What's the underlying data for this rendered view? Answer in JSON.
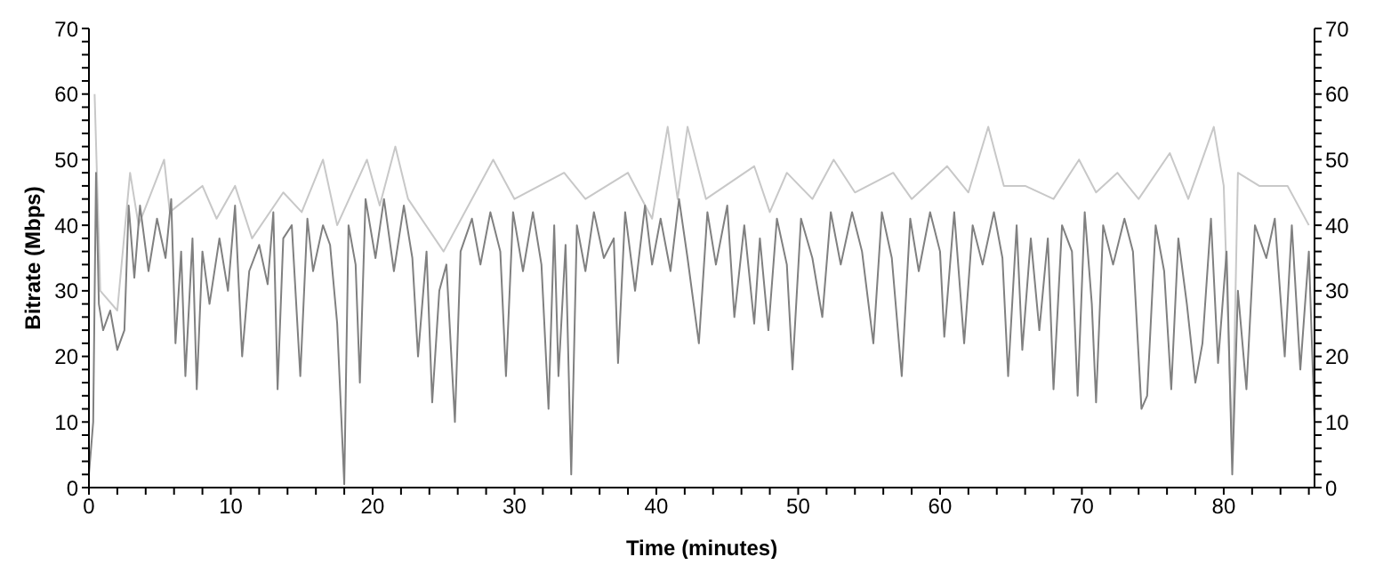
{
  "chart_data": {
    "type": "line",
    "xlabel": "Time (minutes)",
    "ylabel": "Bitrate (Mbps)",
    "xlim": [
      0,
      86.4
    ],
    "xticks": [
      0,
      {
        "value": 2,
        "label": null
      },
      {
        "value": 4,
        "label": null
      },
      {
        "value": 6,
        "label": null
      },
      {
        "value": 8,
        "label": null
      },
      10,
      {
        "value": 12,
        "label": null
      },
      {
        "value": 14,
        "label": null
      },
      {
        "value": 16,
        "label": null
      },
      {
        "value": 18,
        "label": null
      },
      20,
      {
        "value": 22,
        "label": null
      },
      {
        "value": 24,
        "label": null
      },
      {
        "value": 26,
        "label": null
      },
      {
        "value": 28,
        "label": null
      },
      30,
      {
        "value": 32,
        "label": null
      },
      {
        "value": 34,
        "label": null
      },
      {
        "value": 36,
        "label": null
      },
      {
        "value": 38,
        "label": null
      },
      40,
      {
        "value": 42,
        "label": null
      },
      {
        "value": 44,
        "label": null
      },
      {
        "value": 46,
        "label": null
      },
      {
        "value": 48,
        "label": null
      },
      50,
      {
        "value": 52,
        "label": null
      },
      {
        "value": 54,
        "label": null
      },
      {
        "value": 56,
        "label": null
      },
      {
        "value": 58,
        "label": null
      },
      60,
      {
        "value": 62,
        "label": null
      },
      {
        "value": 64,
        "label": null
      },
      {
        "value": 66,
        "label": null
      },
      {
        "value": 68,
        "label": null
      },
      70,
      {
        "value": 72,
        "label": null
      },
      {
        "value": 74,
        "label": null
      },
      {
        "value": 76,
        "label": null
      },
      {
        "value": 78,
        "label": null
      },
      80,
      {
        "value": 82,
        "label": null
      },
      {
        "value": 84,
        "label": null
      },
      {
        "value": 86,
        "label": null
      }
    ],
    "ylim": [
      0,
      70
    ],
    "yticks": [
      0,
      {
        "value": 2,
        "label": null
      },
      {
        "value": 4,
        "label": null
      },
      {
        "value": 6,
        "label": null
      },
      {
        "value": 8,
        "label": null
      },
      10,
      {
        "value": 12,
        "label": null
      },
      {
        "value": 14,
        "label": null
      },
      {
        "value": 16,
        "label": null
      },
      {
        "value": 18,
        "label": null
      },
      20,
      {
        "value": 22,
        "label": null
      },
      {
        "value": 24,
        "label": null
      },
      {
        "value": 26,
        "label": null
      },
      {
        "value": 28,
        "label": null
      },
      30,
      {
        "value": 32,
        "label": null
      },
      {
        "value": 34,
        "label": null
      },
      {
        "value": 36,
        "label": null
      },
      {
        "value": 38,
        "label": null
      },
      40,
      {
        "value": 42,
        "label": null
      },
      {
        "value": 44,
        "label": null
      },
      {
        "value": 46,
        "label": null
      },
      {
        "value": 48,
        "label": null
      },
      50,
      {
        "value": 52,
        "label": null
      },
      {
        "value": 54,
        "label": null
      },
      {
        "value": 56,
        "label": null
      },
      {
        "value": 58,
        "label": null
      },
      60,
      {
        "value": 62,
        "label": null
      },
      {
        "value": 64,
        "label": null
      },
      {
        "value": 66,
        "label": null
      },
      {
        "value": 68,
        "label": null
      },
      70
    ],
    "y2lim": [
      0,
      70
    ],
    "y2ticks": [
      0,
      {
        "value": 2,
        "label": null
      },
      {
        "value": 4,
        "label": null
      },
      {
        "value": 6,
        "label": null
      },
      {
        "value": 8,
        "label": null
      },
      10,
      {
        "value": 12,
        "label": null
      },
      {
        "value": 14,
        "label": null
      },
      {
        "value": 16,
        "label": null
      },
      {
        "value": 18,
        "label": null
      },
      20,
      {
        "value": 22,
        "label": null
      },
      {
        "value": 24,
        "label": null
      },
      {
        "value": 26,
        "label": null
      },
      {
        "value": 28,
        "label": null
      },
      30,
      {
        "value": 32,
        "label": null
      },
      {
        "value": 34,
        "label": null
      },
      {
        "value": 36,
        "label": null
      },
      {
        "value": 38,
        "label": null
      },
      40,
      {
        "value": 42,
        "label": null
      },
      {
        "value": 44,
        "label": null
      },
      {
        "value": 46,
        "label": null
      },
      {
        "value": 48,
        "label": null
      },
      50,
      {
        "value": 52,
        "label": null
      },
      {
        "value": 54,
        "label": null
      },
      {
        "value": 56,
        "label": null
      },
      {
        "value": 58,
        "label": null
      },
      60,
      {
        "value": 62,
        "label": null
      },
      {
        "value": 64,
        "label": null
      },
      {
        "value": 66,
        "label": null
      },
      {
        "value": 68,
        "label": null
      },
      70
    ],
    "grid": false,
    "marker": "none",
    "line_style": "solid",
    "series": [
      {
        "color": "#c8c8c8",
        "x": [
          0.4,
          0.8,
          2.0,
          2.9,
          3.5,
          5.3,
          5.7,
          8.0,
          9.0,
          10.3,
          11.5,
          13.7,
          15.0,
          16.5,
          17.5,
          19.6,
          20.5,
          21.6,
          22.5,
          25.0,
          28.5,
          30.0,
          33.5,
          35.0,
          38.0,
          39.7,
          40.8,
          41.5,
          42.2,
          43.5,
          46.9,
          48.0,
          49.2,
          51.0,
          52.5,
          54.0,
          56.7,
          58.0,
          60.5,
          62.0,
          63.4,
          64.5,
          66.0,
          68.0,
          69.8,
          71.0,
          72.5,
          74.0,
          76.2,
          77.5,
          79.3,
          80.0,
          80.6,
          81.0,
          82.5,
          84.5,
          86.0
        ],
        "values": [
          60,
          30,
          27,
          48,
          40,
          50,
          42,
          46,
          41,
          46,
          38,
          45,
          42,
          50,
          40,
          50,
          43,
          52,
          44,
          36,
          50,
          44,
          48,
          44,
          48,
          41,
          55,
          44,
          55,
          44,
          49,
          42,
          48,
          44,
          50,
          45,
          48,
          44,
          49,
          45,
          55,
          46,
          46,
          44,
          50,
          45,
          48,
          44,
          51,
          44,
          55,
          46,
          5,
          48,
          46,
          46,
          40
        ]
      },
      {
        "color": "#808080",
        "x": [
          0,
          0.3,
          0.5,
          0.7,
          1.0,
          1.5,
          2.0,
          2.5,
          2.8,
          3.2,
          3.6,
          4.2,
          4.8,
          5.4,
          5.8,
          6.1,
          6.5,
          6.8,
          7.3,
          7.6,
          8.0,
          8.5,
          9.2,
          9.8,
          10.3,
          10.8,
          11.3,
          12.0,
          12.6,
          13.0,
          13.3,
          13.7,
          14.3,
          14.9,
          15.4,
          15.8,
          16.5,
          17.0,
          17.5,
          18.0,
          18.3,
          18.8,
          19.1,
          19.5,
          20.2,
          20.8,
          21.5,
          22.2,
          22.8,
          23.2,
          23.8,
          24.2,
          24.7,
          25.2,
          25.8,
          26.2,
          27.0,
          27.6,
          28.3,
          29.0,
          29.4,
          29.9,
          30.6,
          31.3,
          31.9,
          32.4,
          32.8,
          33.1,
          33.6,
          34.0,
          34.4,
          35.0,
          35.6,
          36.3,
          37.0,
          37.3,
          37.8,
          38.5,
          39.2,
          39.7,
          40.3,
          41.0,
          41.6,
          42.2,
          43.0,
          43.6,
          44.2,
          45.0,
          45.5,
          46.2,
          46.9,
          47.3,
          47.9,
          48.5,
          49.2,
          49.6,
          50.2,
          51.0,
          51.7,
          52.3,
          53.0,
          53.8,
          54.5,
          55.3,
          55.9,
          56.6,
          57.3,
          57.9,
          58.5,
          59.3,
          60.0,
          60.3,
          61.0,
          61.7,
          62.3,
          63.0,
          63.8,
          64.4,
          64.8,
          65.4,
          65.8,
          66.4,
          67.0,
          67.6,
          68.0,
          68.6,
          69.3,
          69.7,
          70.2,
          70.7,
          71.0,
          71.5,
          72.2,
          73.0,
          73.6,
          74.2,
          74.6,
          75.2,
          75.8,
          76.3,
          76.8,
          77.4,
          78.0,
          78.5,
          79.1,
          79.6,
          80.2,
          80.6,
          81.0,
          81.6,
          82.2,
          83.0,
          83.6,
          84.3,
          84.8,
          85.4,
          86.0,
          86.4
        ],
        "values": [
          2,
          10,
          48,
          28,
          24,
          27,
          21,
          24,
          43,
          32,
          43,
          33,
          41,
          35,
          44,
          22,
          36,
          17,
          38,
          15,
          36,
          28,
          38,
          30,
          43,
          20,
          33,
          37,
          31,
          42,
          15,
          38,
          40,
          17,
          41,
          33,
          40,
          37,
          25,
          0.5,
          40,
          34,
          16,
          44,
          35,
          44,
          33,
          43,
          35,
          20,
          36,
          13,
          30,
          34,
          10,
          36,
          41,
          34,
          42,
          36,
          17,
          42,
          33,
          42,
          34,
          12,
          40,
          17,
          37,
          2,
          40,
          33,
          42,
          35,
          38,
          19,
          42,
          30,
          43,
          34,
          41,
          33,
          44,
          35,
          22,
          42,
          34,
          43,
          26,
          40,
          25,
          38,
          24,
          41,
          34,
          18,
          41,
          35,
          26,
          42,
          34,
          42,
          36,
          22,
          42,
          35,
          17,
          41,
          33,
          42,
          36,
          23,
          42,
          22,
          40,
          34,
          42,
          35,
          17,
          40,
          21,
          38,
          24,
          38,
          15,
          40,
          36,
          14,
          42,
          28,
          13,
          40,
          34,
          41,
          36,
          12,
          14,
          40,
          33,
          15,
          38,
          28,
          16,
          22,
          41,
          19,
          36,
          2,
          30,
          15,
          40,
          35,
          41,
          20,
          40,
          18,
          36,
          10
        ]
      }
    ]
  }
}
